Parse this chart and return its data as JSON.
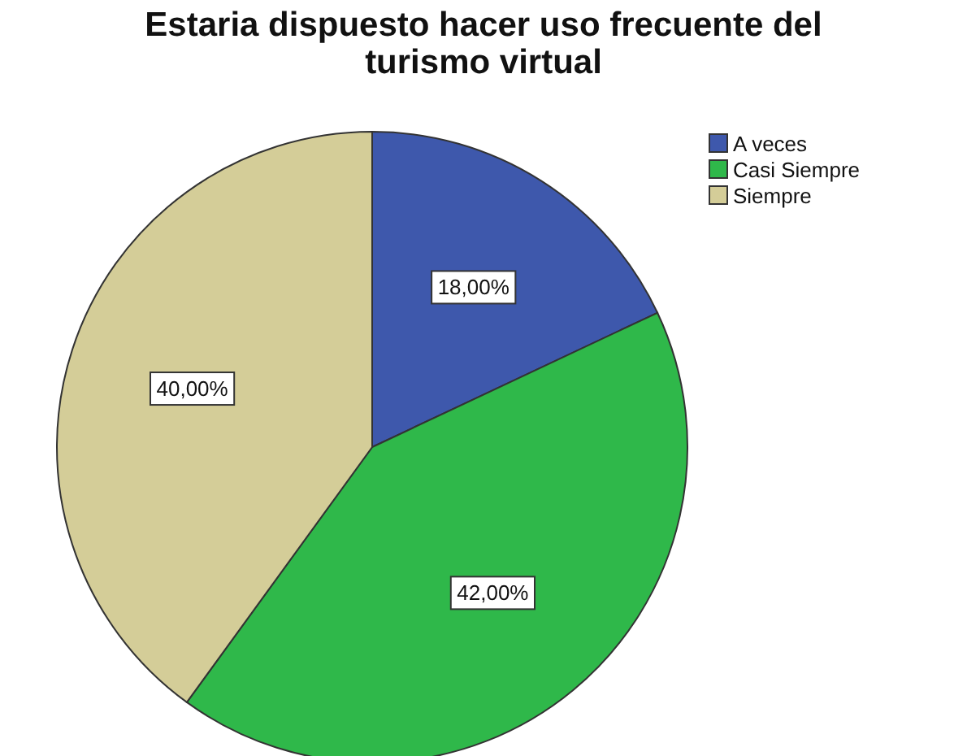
{
  "chart_data": {
    "type": "pie",
    "title": "Estaria dispuesto hacer uso frecuente del turismo virtual",
    "categories": [
      "A veces",
      "Casi Siempre",
      "Siempre"
    ],
    "values": [
      18,
      42,
      40
    ],
    "value_labels": [
      "18,00%",
      "42,00%",
      "40,00%"
    ],
    "colors": [
      "#3e58ac",
      "#2fb84a",
      "#d4cd98"
    ],
    "legend": "top right"
  }
}
